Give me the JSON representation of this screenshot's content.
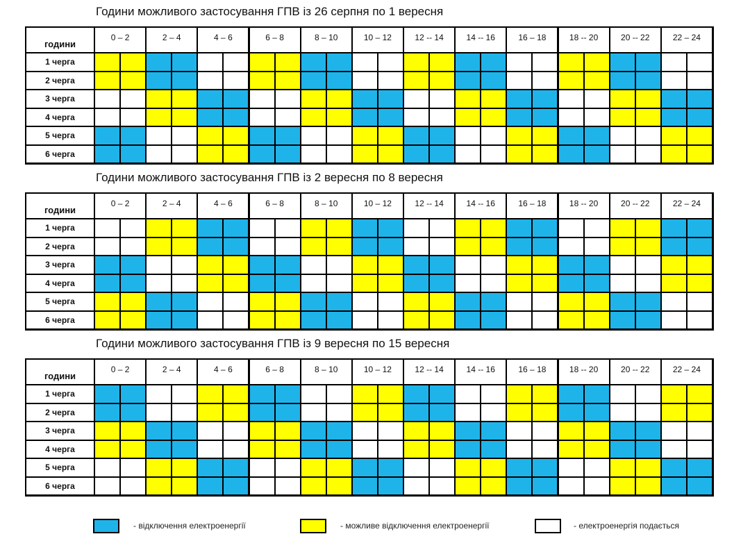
{
  "legend": [
    {
      "color": "#1eb4ea",
      "label": "- відключення електроенергії"
    },
    {
      "color": "#ffff00",
      "label": "- можливе відключення електроенергії"
    },
    {
      "color": "#ffffff",
      "label": "- електроенергія подається"
    }
  ],
  "tables": [
    {
      "title": "Години можливого застосування ГПВ із 26 серпня по 1 вересня",
      "corner": "години",
      "headers": [
        "0 – 2",
        "2 – 4",
        "4 – 6",
        "6 – 8",
        "8 – 10",
        "10 – 12",
        "12 -- 14",
        "14 -- 16",
        "16 – 18",
        "18 -- 20",
        "20 -- 22",
        "22 – 24"
      ],
      "rows": [
        {
          "label": "1 черга",
          "cells": [
            1,
            0,
            2,
            1,
            0,
            2,
            1,
            0,
            2,
            1,
            0,
            2
          ]
        },
        {
          "label": "2 черга",
          "cells": [
            1,
            0,
            2,
            1,
            0,
            2,
            1,
            0,
            2,
            1,
            0,
            2
          ]
        },
        {
          "label": "3 черга",
          "cells": [
            2,
            1,
            0,
            2,
            1,
            0,
            2,
            1,
            0,
            2,
            1,
            0
          ]
        },
        {
          "label": "4 черга",
          "cells": [
            2,
            1,
            0,
            2,
            1,
            0,
            2,
            1,
            0,
            2,
            1,
            0
          ]
        },
        {
          "label": "5 черга",
          "cells": [
            0,
            2,
            1,
            0,
            2,
            1,
            0,
            2,
            1,
            0,
            2,
            1
          ]
        },
        {
          "label": "6 черга",
          "cells": [
            0,
            2,
            1,
            0,
            2,
            1,
            0,
            2,
            1,
            0,
            2,
            1
          ]
        }
      ]
    },
    {
      "title": "Години можливого застосування ГПВ із 2 вересня по 8 вересня",
      "corner": "години",
      "headers": [
        "0 – 2",
        "2 – 4",
        "4 – 6",
        "6 – 8",
        "8 – 10",
        "10 – 12",
        "12 -- 14",
        "14 -- 16",
        "16 – 18",
        "18 -- 20",
        "20 -- 22",
        "22 – 24"
      ],
      "rows": [
        {
          "label": "1 черга",
          "cells": [
            2,
            1,
            0,
            2,
            1,
            0,
            2,
            1,
            0,
            2,
            1,
            0
          ]
        },
        {
          "label": "2 черга",
          "cells": [
            2,
            1,
            0,
            2,
            1,
            0,
            2,
            1,
            0,
            2,
            1,
            0
          ]
        },
        {
          "label": "3 черга",
          "cells": [
            0,
            2,
            1,
            0,
            2,
            1,
            0,
            2,
            1,
            0,
            2,
            1
          ]
        },
        {
          "label": "4 черга",
          "cells": [
            0,
            2,
            1,
            0,
            2,
            1,
            0,
            2,
            1,
            0,
            2,
            1
          ]
        },
        {
          "label": "5 черга",
          "cells": [
            1,
            0,
            2,
            1,
            0,
            2,
            1,
            0,
            2,
            1,
            0,
            2
          ]
        },
        {
          "label": "6 черга",
          "cells": [
            1,
            0,
            2,
            1,
            0,
            2,
            1,
            0,
            2,
            1,
            0,
            2
          ]
        }
      ]
    },
    {
      "title": "Години можливого застосування ГПВ із 9 вересня по 15 вересня",
      "corner": "години",
      "headers": [
        "0 – 2",
        "2 – 4",
        "4 – 6",
        "6 – 8",
        "8 – 10",
        "10 – 12",
        "12 -- 14",
        "14 -- 16",
        "16 – 18",
        "18 -- 20",
        "20 -- 22",
        "22 – 24"
      ],
      "rows": [
        {
          "label": "1 черга",
          "cells": [
            0,
            2,
            1,
            0,
            2,
            1,
            0,
            2,
            1,
            0,
            2,
            1
          ]
        },
        {
          "label": "2 черга",
          "cells": [
            0,
            2,
            1,
            0,
            2,
            1,
            0,
            2,
            1,
            0,
            2,
            1
          ]
        },
        {
          "label": "3 черга",
          "cells": [
            1,
            0,
            2,
            1,
            0,
            2,
            1,
            0,
            2,
            1,
            0,
            2
          ]
        },
        {
          "label": "4 черга",
          "cells": [
            1,
            0,
            2,
            1,
            0,
            2,
            1,
            0,
            2,
            1,
            0,
            2
          ]
        },
        {
          "label": "5 черга",
          "cells": [
            2,
            1,
            0,
            2,
            1,
            0,
            2,
            1,
            0,
            2,
            1,
            0
          ]
        },
        {
          "label": "6 черга",
          "cells": [
            2,
            1,
            0,
            2,
            1,
            0,
            2,
            1,
            0,
            2,
            1,
            0
          ]
        }
      ]
    }
  ]
}
